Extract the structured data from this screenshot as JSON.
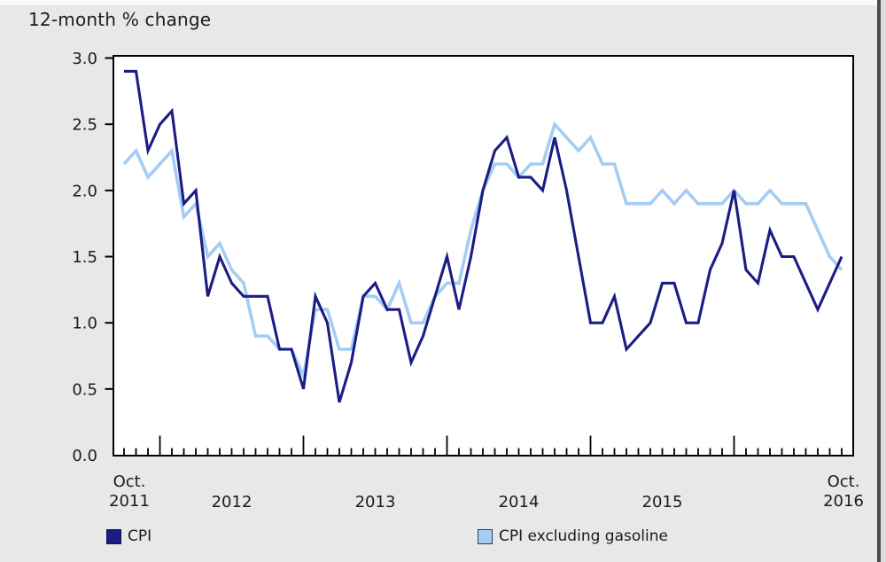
{
  "title": "12-month % change",
  "colors": {
    "background": "#e8e8e8",
    "plot_background": "#ffffff",
    "axis": "#000000",
    "text": "#1c1c1c",
    "cpi_line": "#1c1c85",
    "cpi_excluding_gasoline_line": "#a4cdf4"
  },
  "y_axis": {
    "tick_labels": [
      "0.0",
      "0.5",
      "1.0",
      "1.5",
      "2.0",
      "2.5",
      "3.0"
    ],
    "min": 0.0,
    "max": 3.0,
    "step": 0.5
  },
  "x_axis": {
    "start_month": "Oct.",
    "start_year": "2011",
    "end_month": "Oct.",
    "end_year": "2016",
    "year_labels": [
      "2012",
      "2013",
      "2014",
      "2015"
    ],
    "minor_tick_unit": "month",
    "major_tick_unit": "year"
  },
  "legend": [
    {
      "label": "CPI",
      "series_key": "cpi"
    },
    {
      "label": "CPI excluding gasoline",
      "series_key": "cpi_excluding_gasoline"
    }
  ],
  "chart_data": {
    "type": "line",
    "title": "12-month % change",
    "x_start": "Oct. 2011",
    "x_end": "Oct. 2016",
    "x_interval": "monthly",
    "ylim": [
      0.0,
      3.0
    ],
    "grid": false,
    "legend_position": "bottom",
    "series": [
      {
        "name": "CPI",
        "color_key": "cpi_line",
        "values": [
          2.9,
          2.9,
          2.3,
          2.5,
          2.6,
          1.9,
          2.0,
          1.2,
          1.5,
          1.3,
          1.2,
          1.2,
          1.2,
          0.8,
          0.8,
          0.5,
          1.2,
          1.0,
          0.4,
          0.7,
          1.2,
          1.3,
          1.1,
          1.1,
          0.7,
          0.9,
          1.2,
          1.5,
          1.1,
          1.5,
          2.0,
          2.3,
          2.4,
          2.1,
          2.1,
          2.0,
          2.4,
          2.0,
          1.5,
          1.0,
          1.0,
          1.2,
          0.8,
          0.9,
          1.0,
          1.3,
          1.3,
          1.0,
          1.0,
          1.4,
          1.6,
          2.0,
          1.4,
          1.3,
          1.7,
          1.5,
          1.5,
          1.3,
          1.1,
          1.3,
          1.5
        ]
      },
      {
        "name": "CPI excluding gasoline",
        "color_key": "cpi_excluding_gasoline_line",
        "values": [
          2.2,
          2.3,
          2.1,
          2.2,
          2.3,
          1.8,
          1.9,
          1.5,
          1.6,
          1.4,
          1.3,
          0.9,
          0.9,
          0.8,
          0.8,
          0.6,
          1.1,
          1.1,
          0.8,
          0.8,
          1.2,
          1.2,
          1.1,
          1.3,
          1.0,
          1.0,
          1.2,
          1.3,
          1.3,
          1.7,
          2.0,
          2.2,
          2.2,
          2.1,
          2.2,
          2.2,
          2.5,
          2.4,
          2.3,
          2.4,
          2.2,
          2.2,
          1.9,
          1.9,
          1.9,
          2.0,
          1.9,
          2.0,
          1.9,
          1.9,
          1.9,
          2.0,
          1.9,
          1.9,
          2.0,
          1.9,
          1.9,
          1.9,
          1.7,
          1.5,
          1.4
        ]
      }
    ]
  }
}
